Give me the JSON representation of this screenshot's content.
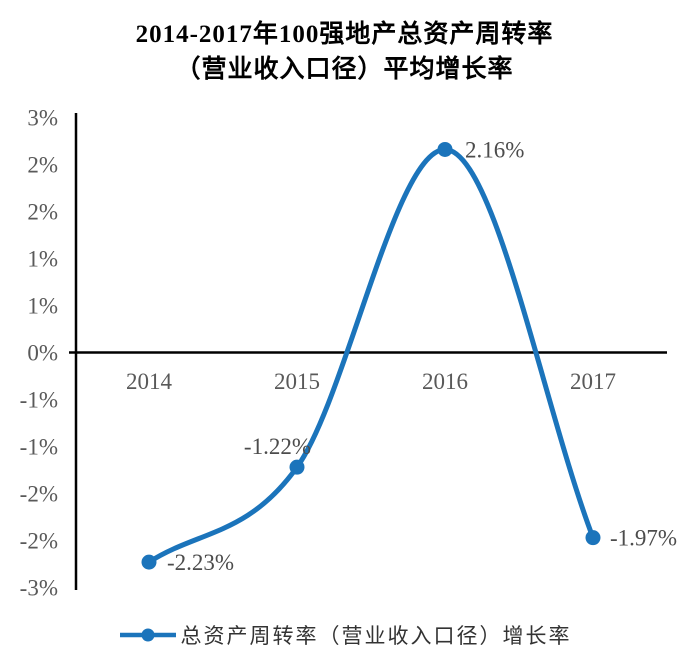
{
  "title": {
    "line1": "2014-2017年100强地产总资产周转率",
    "line2": "（营业收入口径）平均增长率"
  },
  "chart_data": {
    "type": "line",
    "smooth": true,
    "categories": [
      "2014",
      "2015",
      "2016",
      "2017"
    ],
    "series": [
      {
        "name": "总资产周转率（营业收入口径）增长率",
        "values": [
          -2.23,
          -1.22,
          2.16,
          -1.97
        ]
      }
    ],
    "data_labels": [
      "-2.23%",
      "-1.22%",
      "2.16%",
      "-1.97%"
    ],
    "y_tick_labels": [
      "3%",
      "2%",
      "2%",
      "1%",
      "1%",
      "0%",
      "-1%",
      "-1%",
      "-2%",
      "-2%",
      "-3%"
    ],
    "ylim": [
      -2.5,
      2.5
    ],
    "y_tick_step_pct": 0.5,
    "xlabel": "",
    "ylabel": "",
    "grid": false,
    "legend_position": "bottom",
    "colors": {
      "line": "#1B74BB",
      "axis_line": "#000000",
      "axis_text": "#595959",
      "data_label_text": "#4C4C4C",
      "legend_text": "#333333",
      "title_text": "#000000"
    }
  },
  "legend": {
    "label": "总资产周转率（营业收入口径）增长率"
  }
}
